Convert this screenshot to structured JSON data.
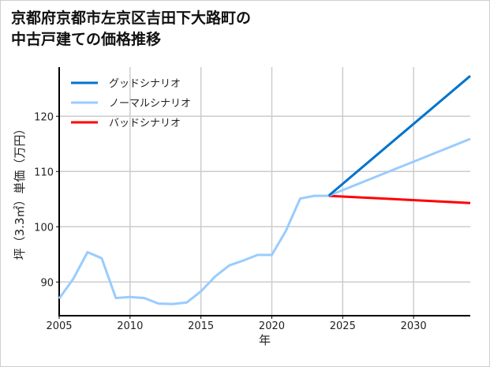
{
  "chart_data": {
    "type": "line",
    "title_lines": [
      "京都府京都市左京区吉田下大路町の",
      "中古戸建ての価格推移"
    ],
    "xlabel": "年",
    "ylabel": "坪（3.3㎡）単価（万円）",
    "xlim": [
      2005,
      2034
    ],
    "ylim": [
      83.9,
      128.9
    ],
    "xticks": [
      2005,
      2010,
      2015,
      2020,
      2025,
      2030
    ],
    "yticks": [
      90,
      100,
      110,
      120
    ],
    "grid": true,
    "legend_position": "top-left",
    "history": {
      "x": [
        2005,
        2006,
        2007,
        2008,
        2009,
        2010,
        2011,
        2012,
        2013,
        2014,
        2015,
        2016,
        2017,
        2018,
        2019,
        2020,
        2021,
        2022,
        2023,
        2024
      ],
      "y": [
        87.0,
        90.6,
        95.4,
        94.3,
        87.1,
        87.3,
        87.1,
        86.1,
        86.0,
        86.3,
        88.3,
        91.0,
        93.0,
        93.9,
        94.9,
        94.9,
        99.3,
        105.1,
        105.6,
        105.6
      ],
      "color": "#99ccff"
    },
    "series": [
      {
        "name": "グッドシナリオ",
        "color": "#0073cc",
        "x": [
          2024,
          2034
        ],
        "y": [
          105.6,
          127.3
        ]
      },
      {
        "name": "ノーマルシナリオ",
        "color": "#99ccff",
        "x": [
          2024,
          2034
        ],
        "y": [
          105.6,
          115.9
        ]
      },
      {
        "name": "バッドシナリオ",
        "color": "#ff0000",
        "x": [
          2024,
          2034
        ],
        "y": [
          105.6,
          104.3
        ]
      }
    ]
  }
}
